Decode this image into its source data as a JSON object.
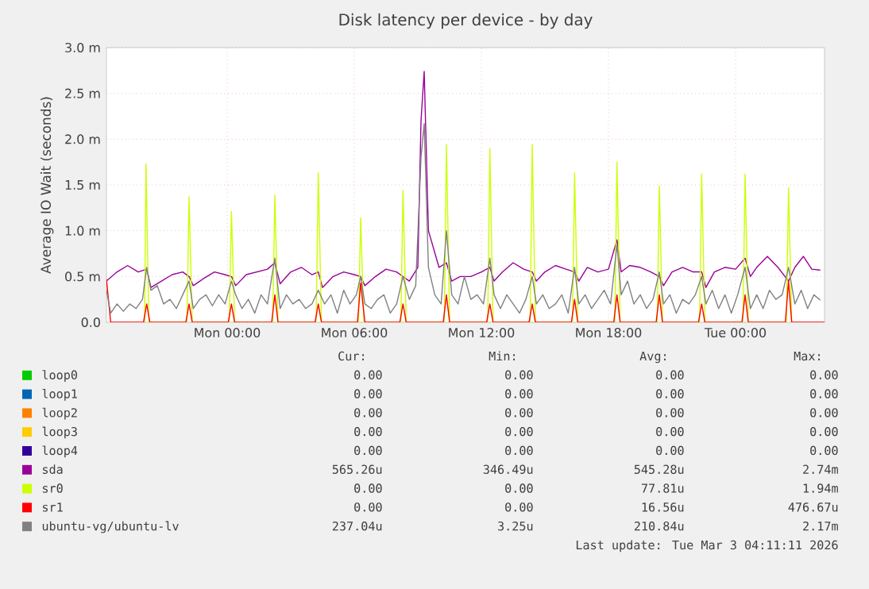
{
  "chart_data": {
    "type": "line",
    "title": "Disk latency per device - by day",
    "ylabel": "Average IO Wait (seconds)",
    "xlim": [
      "2026-03-01T18:18",
      "2026-03-03T04:12"
    ],
    "ylim": [
      0,
      3
    ],
    "xticks": [
      {
        "value": "2026-03-02T00:00",
        "label": "Mon 00:00"
      },
      {
        "value": "2026-03-02T06:00",
        "label": "Mon 06:00"
      },
      {
        "value": "2026-03-02T12:00",
        "label": "Mon 12:00"
      },
      {
        "value": "2026-03-02T18:00",
        "label": "Mon 18:00"
      },
      {
        "value": "2026-03-03T00:00",
        "label": "Tue 00:00"
      }
    ],
    "yticks": [
      {
        "value": 0,
        "label": "0.0"
      },
      {
        "value": 0.5,
        "label": "0.5 m"
      },
      {
        "value": 1,
        "label": "1.0 m"
      },
      {
        "value": 1.5,
        "label": "1.5 m"
      },
      {
        "value": 2,
        "label": "2.0 m"
      },
      {
        "value": 2.5,
        "label": "2.5 m"
      },
      {
        "value": 3,
        "label": "3.0 m"
      }
    ],
    "grid": true,
    "legend": "bottom",
    "series": [
      {
        "name": "loop0",
        "color": "#00cc00"
      },
      {
        "name": "loop1",
        "color": "#0066b3"
      },
      {
        "name": "loop2",
        "color": "#ff8000"
      },
      {
        "name": "loop3",
        "color": "#ffcc00"
      },
      {
        "name": "loop4",
        "color": "#330099"
      },
      {
        "name": "sda",
        "color": "#990099",
        "x": [
          "2026-03-01T18:18",
          "2026-03-01T18:48",
          "2026-03-01T19:18",
          "2026-03-01T19:48",
          "2026-03-01T20:12",
          "2026-03-01T20:24",
          "2026-03-01T20:54",
          "2026-03-01T21:24",
          "2026-03-01T21:54",
          "2026-03-01T22:12",
          "2026-03-01T22:24",
          "2026-03-01T22:54",
          "2026-03-01T23:24",
          "2026-03-01T23:54",
          "2026-03-02T00:12",
          "2026-03-02T00:24",
          "2026-03-02T00:54",
          "2026-03-02T01:24",
          "2026-03-02T01:54",
          "2026-03-02T02:15",
          "2026-03-02T02:30",
          "2026-03-02T03:00",
          "2026-03-02T03:30",
          "2026-03-02T04:00",
          "2026-03-02T04:18",
          "2026-03-02T04:30",
          "2026-03-02T05:00",
          "2026-03-02T05:30",
          "2026-03-02T06:00",
          "2026-03-02T06:18",
          "2026-03-02T06:30",
          "2026-03-02T07:00",
          "2026-03-02T07:30",
          "2026-03-02T08:00",
          "2026-03-02T08:18",
          "2026-03-02T08:36",
          "2026-03-02T09:00",
          "2026-03-02T09:09",
          "2026-03-02T09:18",
          "2026-03-02T09:30",
          "2026-03-02T10:00",
          "2026-03-02T10:21",
          "2026-03-02T10:36",
          "2026-03-02T11:00",
          "2026-03-02T11:30",
          "2026-03-02T12:00",
          "2026-03-02T12:24",
          "2026-03-02T12:36",
          "2026-03-02T13:00",
          "2026-03-02T13:30",
          "2026-03-02T14:00",
          "2026-03-02T14:24",
          "2026-03-02T14:36",
          "2026-03-02T15:00",
          "2026-03-02T15:30",
          "2026-03-02T16:00",
          "2026-03-02T16:24",
          "2026-03-02T16:36",
          "2026-03-02T17:00",
          "2026-03-02T17:30",
          "2026-03-02T18:00",
          "2026-03-02T18:24",
          "2026-03-02T18:36",
          "2026-03-02T19:00",
          "2026-03-02T19:30",
          "2026-03-02T20:00",
          "2026-03-02T20:24",
          "2026-03-02T20:36",
          "2026-03-02T21:00",
          "2026-03-02T21:30",
          "2026-03-02T22:00",
          "2026-03-02T22:24",
          "2026-03-02T22:36",
          "2026-03-02T23:00",
          "2026-03-02T23:30",
          "2026-03-03T00:00",
          "2026-03-03T00:27",
          "2026-03-03T00:42",
          "2026-03-03T01:00",
          "2026-03-03T01:30",
          "2026-03-03T02:00",
          "2026-03-03T02:30",
          "2026-03-03T02:48",
          "2026-03-03T03:12",
          "2026-03-03T03:36",
          "2026-03-03T04:00"
        ],
        "values": [
          0.45,
          0.55,
          0.62,
          0.55,
          0.58,
          0.38,
          0.45,
          0.52,
          0.55,
          0.5,
          0.4,
          0.48,
          0.55,
          0.52,
          0.5,
          0.4,
          0.52,
          0.55,
          0.58,
          0.65,
          0.42,
          0.55,
          0.6,
          0.52,
          0.55,
          0.38,
          0.5,
          0.55,
          0.52,
          0.5,
          0.4,
          0.5,
          0.58,
          0.55,
          0.5,
          0.45,
          0.6,
          2.2,
          2.74,
          1,
          0.6,
          0.65,
          0.45,
          0.5,
          0.5,
          0.55,
          0.6,
          0.45,
          0.55,
          0.65,
          0.58,
          0.55,
          0.45,
          0.55,
          0.62,
          0.58,
          0.55,
          0.45,
          0.6,
          0.55,
          0.58,
          0.9,
          0.55,
          0.62,
          0.6,
          0.55,
          0.5,
          0.4,
          0.55,
          0.6,
          0.55,
          0.55,
          0.38,
          0.55,
          0.6,
          0.58,
          0.7,
          0.5,
          0.6,
          0.72,
          0.6,
          0.45,
          0.6,
          0.72,
          0.58,
          0.57
        ]
      },
      {
        "name": "sr0",
        "color": "#ccff00",
        "x": [
          "2026-03-01T20:06",
          "2026-03-01T20:10",
          "2026-03-01T20:18",
          "2026-03-01T22:06",
          "2026-03-01T22:12",
          "2026-03-01T22:21",
          "2026-03-02T00:06",
          "2026-03-02T00:12",
          "2026-03-02T00:21",
          "2026-03-02T02:09",
          "2026-03-02T02:15",
          "2026-03-02T02:24",
          "2026-03-02T04:12",
          "2026-03-02T04:18",
          "2026-03-02T04:27",
          "2026-03-02T06:12",
          "2026-03-02T06:18",
          "2026-03-02T06:27",
          "2026-03-02T08:12",
          "2026-03-02T08:18",
          "2026-03-02T08:27",
          "2026-03-02T10:15",
          "2026-03-02T10:21",
          "2026-03-02T10:30",
          "2026-03-02T12:18",
          "2026-03-02T12:24",
          "2026-03-02T12:33",
          "2026-03-02T14:18",
          "2026-03-02T14:24",
          "2026-03-02T14:33",
          "2026-03-02T16:18",
          "2026-03-02T16:24",
          "2026-03-02T16:33",
          "2026-03-02T18:18",
          "2026-03-02T18:24",
          "2026-03-02T18:33",
          "2026-03-02T20:18",
          "2026-03-02T20:24",
          "2026-03-02T20:33",
          "2026-03-02T22:18",
          "2026-03-02T22:24",
          "2026-03-02T22:33",
          "2026-03-03T00:21",
          "2026-03-03T00:27",
          "2026-03-03T00:36",
          "2026-03-03T02:24",
          "2026-03-03T02:30",
          "2026-03-03T02:39"
        ],
        "values": [
          0,
          1.73,
          0,
          0,
          1.37,
          0,
          0,
          1.21,
          0,
          0,
          1.39,
          0,
          0,
          1.63,
          0,
          0,
          1.14,
          0,
          0,
          1.44,
          0,
          0,
          1.94,
          0,
          0,
          1.9,
          0,
          0,
          1.94,
          0,
          0,
          1.63,
          0,
          0,
          1.75,
          0,
          0,
          1.49,
          0,
          0,
          1.62,
          0,
          0,
          1.62,
          0,
          0,
          1.47,
          0
        ]
      },
      {
        "name": "sr1",
        "color": "#ff0000",
        "x": [
          "2026-03-01T18:18",
          "2026-03-01T18:30",
          "2026-03-01T20:03",
          "2026-03-01T20:12",
          "2026-03-01T20:21",
          "2026-03-01T22:03",
          "2026-03-01T22:12",
          "2026-03-01T22:21",
          "2026-03-02T00:03",
          "2026-03-02T00:12",
          "2026-03-02T00:21",
          "2026-03-02T02:06",
          "2026-03-02T02:15",
          "2026-03-02T02:24",
          "2026-03-02T04:09",
          "2026-03-02T04:18",
          "2026-03-02T04:27",
          "2026-03-02T06:09",
          "2026-03-02T06:18",
          "2026-03-02T06:30",
          "2026-03-02T08:09",
          "2026-03-02T08:18",
          "2026-03-02T08:27",
          "2026-03-02T10:12",
          "2026-03-02T10:21",
          "2026-03-02T10:30",
          "2026-03-02T12:15",
          "2026-03-02T12:24",
          "2026-03-02T12:33",
          "2026-03-02T14:15",
          "2026-03-02T14:24",
          "2026-03-02T14:33",
          "2026-03-02T16:15",
          "2026-03-02T16:24",
          "2026-03-02T16:33",
          "2026-03-02T18:15",
          "2026-03-02T18:24",
          "2026-03-02T18:33",
          "2026-03-02T20:15",
          "2026-03-02T20:24",
          "2026-03-02T20:33",
          "2026-03-02T22:15",
          "2026-03-02T22:24",
          "2026-03-02T22:33",
          "2026-03-03T00:18",
          "2026-03-03T00:27",
          "2026-03-03T00:36",
          "2026-03-03T02:21",
          "2026-03-03T02:30",
          "2026-03-03T02:39",
          "2026-03-03T04:12"
        ],
        "values": [
          0.47,
          0,
          0,
          0.2,
          0,
          0,
          0.2,
          0,
          0,
          0.2,
          0,
          0,
          0.3,
          0,
          0,
          0.2,
          0,
          0,
          0.43,
          0,
          0,
          0.2,
          0,
          0,
          0.3,
          0,
          0,
          0.2,
          0,
          0,
          0.2,
          0,
          0,
          0.25,
          0,
          0,
          0.3,
          0,
          0,
          0.3,
          0,
          0,
          0.2,
          0,
          0,
          0.3,
          0,
          0,
          0.45,
          0,
          0
        ]
      },
      {
        "name": "ubuntu-vg/ubuntu-lv",
        "color": "#808080",
        "x": [
          "2026-03-01T18:18",
          "2026-03-01T18:30",
          "2026-03-01T18:48",
          "2026-03-01T19:06",
          "2026-03-01T19:24",
          "2026-03-01T19:42",
          "2026-03-01T20:00",
          "2026-03-01T20:12",
          "2026-03-01T20:24",
          "2026-03-01T20:42",
          "2026-03-01T21:00",
          "2026-03-01T21:18",
          "2026-03-01T21:36",
          "2026-03-01T21:54",
          "2026-03-01T22:12",
          "2026-03-01T22:24",
          "2026-03-01T22:42",
          "2026-03-01T23:00",
          "2026-03-01T23:18",
          "2026-03-01T23:36",
          "2026-03-01T23:54",
          "2026-03-02T00:12",
          "2026-03-02T00:24",
          "2026-03-02T00:42",
          "2026-03-02T01:00",
          "2026-03-02T01:18",
          "2026-03-02T01:36",
          "2026-03-02T01:54",
          "2026-03-02T02:15",
          "2026-03-02T02:30",
          "2026-03-02T02:48",
          "2026-03-02T03:06",
          "2026-03-02T03:24",
          "2026-03-02T03:42",
          "2026-03-02T04:00",
          "2026-03-02T04:18",
          "2026-03-02T04:36",
          "2026-03-02T04:54",
          "2026-03-02T05:12",
          "2026-03-02T05:30",
          "2026-03-02T05:48",
          "2026-03-02T06:06",
          "2026-03-02T06:18",
          "2026-03-02T06:30",
          "2026-03-02T06:48",
          "2026-03-02T07:06",
          "2026-03-02T07:24",
          "2026-03-02T07:42",
          "2026-03-02T08:00",
          "2026-03-02T08:18",
          "2026-03-02T08:36",
          "2026-03-02T08:54",
          "2026-03-02T09:09",
          "2026-03-02T09:18",
          "2026-03-02T09:30",
          "2026-03-02T09:48",
          "2026-03-02T10:06",
          "2026-03-02T10:21",
          "2026-03-02T10:36",
          "2026-03-02T10:54",
          "2026-03-02T11:12",
          "2026-03-02T11:30",
          "2026-03-02T11:48",
          "2026-03-02T12:06",
          "2026-03-02T12:24",
          "2026-03-02T12:36",
          "2026-03-02T12:54",
          "2026-03-02T13:12",
          "2026-03-02T13:30",
          "2026-03-02T13:48",
          "2026-03-02T14:06",
          "2026-03-02T14:24",
          "2026-03-02T14:36",
          "2026-03-02T14:54",
          "2026-03-02T15:12",
          "2026-03-02T15:30",
          "2026-03-02T15:48",
          "2026-03-02T16:06",
          "2026-03-02T16:24",
          "2026-03-02T16:36",
          "2026-03-02T16:54",
          "2026-03-02T17:12",
          "2026-03-02T17:30",
          "2026-03-02T17:48",
          "2026-03-02T18:06",
          "2026-03-02T18:24",
          "2026-03-02T18:36",
          "2026-03-02T18:54",
          "2026-03-02T19:12",
          "2026-03-02T19:30",
          "2026-03-02T19:48",
          "2026-03-02T20:06",
          "2026-03-02T20:24",
          "2026-03-02T20:36",
          "2026-03-02T20:54",
          "2026-03-02T21:12",
          "2026-03-02T21:30",
          "2026-03-02T21:48",
          "2026-03-02T22:06",
          "2026-03-02T22:24",
          "2026-03-02T22:36",
          "2026-03-02T22:54",
          "2026-03-02T23:12",
          "2026-03-02T23:30",
          "2026-03-02T23:48",
          "2026-03-03T00:06",
          "2026-03-03T00:27",
          "2026-03-03T00:42",
          "2026-03-03T01:00",
          "2026-03-03T01:18",
          "2026-03-03T01:36",
          "2026-03-03T01:54",
          "2026-03-03T02:12",
          "2026-03-03T02:30",
          "2026-03-03T02:48",
          "2026-03-03T03:06",
          "2026-03-03T03:24",
          "2026-03-03T03:42",
          "2026-03-03T04:00"
        ],
        "values": [
          0.35,
          0.1,
          0.2,
          0.12,
          0.2,
          0.15,
          0.25,
          0.6,
          0.35,
          0.4,
          0.2,
          0.25,
          0.15,
          0.3,
          0.45,
          0.15,
          0.25,
          0.3,
          0.18,
          0.3,
          0.2,
          0.45,
          0.3,
          0.15,
          0.25,
          0.1,
          0.3,
          0.2,
          0.7,
          0.15,
          0.3,
          0.2,
          0.25,
          0.15,
          0.2,
          0.35,
          0.2,
          0.3,
          0.1,
          0.35,
          0.2,
          0.3,
          0.5,
          0.2,
          0.15,
          0.25,
          0.3,
          0.1,
          0.2,
          0.5,
          0.25,
          0.4,
          1.8,
          2.17,
          0.6,
          0.3,
          0.2,
          1,
          0.3,
          0.2,
          0.5,
          0.25,
          0.3,
          0.2,
          0.7,
          0.3,
          0.15,
          0.3,
          0.2,
          0.1,
          0.25,
          0.5,
          0.2,
          0.3,
          0.15,
          0.2,
          0.3,
          0.1,
          0.6,
          0.2,
          0.3,
          0.15,
          0.25,
          0.35,
          0.2,
          0.85,
          0.3,
          0.45,
          0.2,
          0.3,
          0.15,
          0.25,
          0.55,
          0.2,
          0.3,
          0.1,
          0.25,
          0.2,
          0.3,
          0.5,
          0.2,
          0.35,
          0.15,
          0.3,
          0.1,
          0.3,
          0.6,
          0.15,
          0.3,
          0.15,
          0.35,
          0.25,
          0.3,
          0.6,
          0.2,
          0.35,
          0.15,
          0.3,
          0.24
        ]
      }
    ],
    "annotations": [
      "Cur:",
      "Min:",
      "Avg:",
      "Max:",
      "0.00",
      "0.00",
      "0.00",
      "0.00",
      "0.00",
      "0.00",
      "0.00",
      "0.00",
      "0.00",
      "0.00",
      "0.00",
      "0.00",
      "0.00",
      "0.00",
      "0.00",
      "0.00",
      "0.00",
      "0.00",
      "0.00",
      "0.00",
      "565.26u",
      "346.49u",
      "545.28u",
      "2.74m",
      "0.00",
      "0.00",
      "77.81u",
      "1.94m",
      "0.00",
      "0.00",
      "16.56u",
      "476.67u",
      "237.04u",
      "3.25u",
      "210.84u",
      "2.17m",
      "Last update: Tue Mar  3 04:11:11 2026"
    ]
  }
}
